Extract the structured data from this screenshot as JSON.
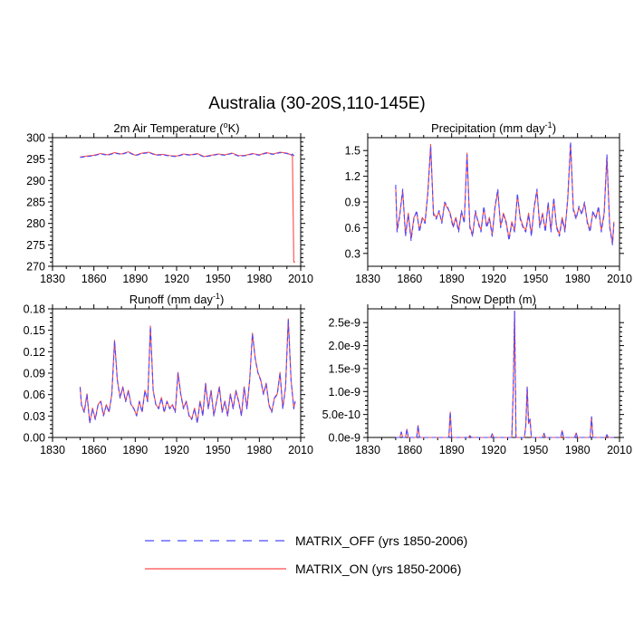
{
  "figure": {
    "title": "Australia (30-20S,110-145E)"
  },
  "legend": {
    "placement": "bottom-center",
    "entries": [
      {
        "label": "MATRIX_OFF (yrs 1850-2006)",
        "color": "#4a4aff",
        "style": "dashed"
      },
      {
        "label": "MATRIX_ON (yrs 1850-2006)",
        "color": "#ff4a4a",
        "style": "solid"
      }
    ]
  },
  "chart_data": [
    {
      "type": "line",
      "title_main": "2m Air Temperature (",
      "title_sup": "o",
      "title_end": "K)",
      "xlim": [
        1830,
        2010
      ],
      "xticks": [
        1830,
        1860,
        1890,
        1920,
        1950,
        1980,
        2010
      ],
      "ylim": [
        270,
        300
      ],
      "yticks": [
        270,
        275,
        280,
        285,
        290,
        295,
        300
      ],
      "ytick_labels": [
        "270",
        "275",
        "280",
        "285",
        "290",
        "295",
        "300"
      ],
      "x": [
        1850,
        1855,
        1860,
        1865,
        1870,
        1875,
        1880,
        1885,
        1890,
        1895,
        1900,
        1905,
        1910,
        1915,
        1920,
        1925,
        1930,
        1935,
        1940,
        1945,
        1950,
        1955,
        1960,
        1965,
        1970,
        1975,
        1980,
        1985,
        1990,
        1995,
        2000,
        2003,
        2004,
        2005,
        2006
      ],
      "series": [
        {
          "name": "MATRIX_OFF",
          "values": [
            295.4,
            295.6,
            295.8,
            296.2,
            295.9,
            296.4,
            296.1,
            296.6,
            295.8,
            296.3,
            296.5,
            295.9,
            296.0,
            295.7,
            295.6,
            296.1,
            295.9,
            296.2,
            295.5,
            295.8,
            296.1,
            295.9,
            296.3,
            295.7,
            295.8,
            296.2,
            295.9,
            296.4,
            296.1,
            296.5,
            296.3,
            295.9,
            296.2,
            295.8,
            296.5
          ]
        },
        {
          "name": "MATRIX_ON",
          "values": [
            295.5,
            295.7,
            295.9,
            296.3,
            296.0,
            296.5,
            296.2,
            296.7,
            295.9,
            296.4,
            296.6,
            296.0,
            296.1,
            295.8,
            295.7,
            296.2,
            296.0,
            296.3,
            295.6,
            295.9,
            296.2,
            296.0,
            296.4,
            295.8,
            295.9,
            296.3,
            296.0,
            296.5,
            296.2,
            296.6,
            296.4,
            296.0,
            295.8,
            271.0,
            271.0
          ]
        }
      ]
    },
    {
      "type": "line",
      "title_main": "Precipitation (mm day",
      "title_sup": "-1",
      "title_end": ")",
      "xlim": [
        1830,
        2010
      ],
      "xticks": [
        1830,
        1860,
        1890,
        1920,
        1950,
        1980,
        2010
      ],
      "ylim": [
        0.15,
        1.65
      ],
      "yticks": [
        0.3,
        0.6,
        0.9,
        1.2,
        1.5
      ],
      "ytick_labels": [
        "0.3",
        "0.6",
        "0.9",
        "1.2",
        "1.5"
      ],
      "x": [
        1850,
        1851,
        1853,
        1855,
        1857,
        1859,
        1861,
        1863,
        1865,
        1867,
        1869,
        1871,
        1873,
        1875,
        1877,
        1879,
        1881,
        1883,
        1885,
        1887,
        1889,
        1891,
        1893,
        1895,
        1897,
        1899,
        1901,
        1903,
        1905,
        1907,
        1909,
        1911,
        1913,
        1915,
        1917,
        1919,
        1921,
        1923,
        1925,
        1927,
        1929,
        1931,
        1933,
        1935,
        1937,
        1939,
        1941,
        1943,
        1945,
        1947,
        1949,
        1951,
        1953,
        1955,
        1957,
        1959,
        1961,
        1963,
        1965,
        1967,
        1969,
        1971,
        1973,
        1975,
        1977,
        1979,
        1981,
        1983,
        1985,
        1987,
        1989,
        1991,
        1993,
        1995,
        1997,
        1999,
        2001,
        2003,
        2005,
        2006
      ],
      "series": [
        {
          "name": "MATRIX_OFF",
          "values": [
            1.1,
            0.55,
            0.75,
            1.05,
            0.5,
            0.75,
            0.45,
            0.7,
            0.8,
            0.55,
            0.7,
            0.65,
            1.0,
            1.55,
            0.75,
            0.7,
            0.8,
            0.65,
            0.9,
            0.85,
            0.75,
            0.6,
            0.7,
            0.55,
            0.8,
            0.65,
            1.45,
            0.6,
            0.5,
            0.8,
            0.65,
            0.55,
            0.85,
            0.6,
            0.7,
            0.5,
            0.85,
            1.05,
            0.6,
            0.75,
            0.65,
            0.45,
            0.65,
            0.55,
            1.0,
            0.7,
            0.6,
            0.55,
            0.75,
            0.5,
            0.85,
            1.05,
            0.6,
            0.75,
            0.55,
            0.9,
            0.55,
            0.95,
            0.6,
            0.5,
            0.7,
            0.55,
            0.95,
            1.6,
            0.8,
            0.7,
            0.85,
            0.75,
            0.9,
            0.65,
            0.55,
            0.8,
            0.7,
            0.85,
            0.55,
            0.75,
            1.45,
            0.6,
            0.4,
            0.65
          ]
        },
        {
          "name": "MATRIX_ON",
          "values": [
            1.08,
            0.57,
            0.77,
            1.03,
            0.52,
            0.77,
            0.47,
            0.72,
            0.78,
            0.57,
            0.72,
            0.67,
            1.02,
            1.57,
            0.77,
            0.72,
            0.78,
            0.67,
            0.88,
            0.83,
            0.77,
            0.62,
            0.72,
            0.57,
            0.78,
            0.67,
            1.47,
            0.62,
            0.52,
            0.78,
            0.67,
            0.57,
            0.83,
            0.62,
            0.72,
            0.52,
            0.83,
            1.03,
            0.62,
            0.77,
            0.67,
            0.47,
            0.67,
            0.57,
            0.98,
            0.72,
            0.62,
            0.57,
            0.77,
            0.52,
            0.83,
            1.03,
            0.62,
            0.77,
            0.57,
            0.88,
            0.57,
            0.93,
            0.62,
            0.52,
            0.72,
            0.57,
            0.93,
            1.58,
            0.82,
            0.72,
            0.83,
            0.77,
            0.88,
            0.67,
            0.57,
            0.78,
            0.72,
            0.83,
            0.57,
            0.77,
            1.43,
            0.62,
            0.42,
            0.67
          ]
        }
      ]
    },
    {
      "type": "line",
      "title_main": "Runoff (mm day",
      "title_sup": "-1",
      "title_end": ")",
      "xlim": [
        1830,
        2010
      ],
      "xticks": [
        1830,
        1860,
        1890,
        1920,
        1950,
        1980,
        2010
      ],
      "ylim": [
        0,
        0.18
      ],
      "yticks": [
        0,
        0.03,
        0.06,
        0.09,
        0.12,
        0.15,
        0.18
      ],
      "ytick_labels": [
        "0.00",
        "0.03",
        "0.06",
        "0.09",
        "0.12",
        "0.15",
        "0.18"
      ],
      "x": [
        1850,
        1851,
        1853,
        1855,
        1857,
        1859,
        1861,
        1863,
        1865,
        1867,
        1869,
        1871,
        1873,
        1875,
        1877,
        1879,
        1881,
        1883,
        1885,
        1887,
        1889,
        1891,
        1893,
        1895,
        1897,
        1899,
        1901,
        1903,
        1905,
        1907,
        1909,
        1911,
        1913,
        1915,
        1917,
        1919,
        1921,
        1923,
        1925,
        1927,
        1929,
        1931,
        1933,
        1935,
        1937,
        1939,
        1941,
        1943,
        1945,
        1947,
        1949,
        1951,
        1953,
        1955,
        1957,
        1959,
        1961,
        1963,
        1965,
        1967,
        1969,
        1971,
        1973,
        1975,
        1977,
        1979,
        1981,
        1983,
        1985,
        1987,
        1989,
        1991,
        1993,
        1995,
        1997,
        1999,
        2001,
        2003,
        2005,
        2006
      ],
      "series": [
        {
          "name": "MATRIX_OFF",
          "values": [
            0.07,
            0.045,
            0.035,
            0.06,
            0.02,
            0.04,
            0.025,
            0.045,
            0.05,
            0.03,
            0.045,
            0.035,
            0.06,
            0.135,
            0.08,
            0.055,
            0.07,
            0.05,
            0.065,
            0.045,
            0.04,
            0.03,
            0.05,
            0.035,
            0.065,
            0.05,
            0.155,
            0.065,
            0.045,
            0.04,
            0.055,
            0.035,
            0.05,
            0.04,
            0.045,
            0.035,
            0.09,
            0.06,
            0.04,
            0.05,
            0.03,
            0.025,
            0.04,
            0.02,
            0.05,
            0.03,
            0.075,
            0.04,
            0.065,
            0.03,
            0.05,
            0.07,
            0.035,
            0.05,
            0.03,
            0.06,
            0.04,
            0.065,
            0.05,
            0.03,
            0.07,
            0.04,
            0.08,
            0.145,
            0.11,
            0.09,
            0.08,
            0.06,
            0.075,
            0.045,
            0.035,
            0.055,
            0.06,
            0.09,
            0.04,
            0.07,
            0.165,
            0.08,
            0.04,
            0.05
          ]
        },
        {
          "name": "MATRIX_ON",
          "values": [
            0.071,
            0.046,
            0.036,
            0.061,
            0.021,
            0.041,
            0.026,
            0.046,
            0.051,
            0.031,
            0.046,
            0.036,
            0.061,
            0.136,
            0.081,
            0.056,
            0.071,
            0.051,
            0.066,
            0.046,
            0.041,
            0.031,
            0.051,
            0.036,
            0.066,
            0.051,
            0.156,
            0.066,
            0.046,
            0.041,
            0.056,
            0.036,
            0.051,
            0.041,
            0.046,
            0.036,
            0.091,
            0.061,
            0.041,
            0.051,
            0.031,
            0.026,
            0.041,
            0.021,
            0.051,
            0.031,
            0.076,
            0.041,
            0.066,
            0.031,
            0.051,
            0.071,
            0.036,
            0.051,
            0.031,
            0.061,
            0.041,
            0.066,
            0.051,
            0.031,
            0.071,
            0.041,
            0.081,
            0.146,
            0.111,
            0.091,
            0.081,
            0.061,
            0.076,
            0.046,
            0.036,
            0.056,
            0.061,
            0.091,
            0.041,
            0.071,
            0.166,
            0.081,
            0.041,
            0.051
          ]
        }
      ]
    },
    {
      "type": "line",
      "title_main": "Snow Depth (m)",
      "title_sup": "",
      "title_end": "",
      "xlim": [
        1830,
        2010
      ],
      "xticks": [
        1830,
        1860,
        1890,
        1920,
        1950,
        1980,
        2010
      ],
      "ylim": [
        0,
        2.8e-09
      ],
      "yticks": [
        0,
        5e-10,
        1e-09,
        1.5e-09,
        2e-09,
        2.5e-09
      ],
      "ytick_labels": [
        "0.0e-9",
        "5.0e-10",
        "1.0e-9",
        "1.5e-9",
        "2.0e-9",
        "2.5e-9"
      ],
      "x": [
        1850,
        1853,
        1854,
        1855,
        1857,
        1858,
        1859,
        1862,
        1865,
        1866,
        1867,
        1870,
        1878,
        1882,
        1888,
        1889,
        1890,
        1895,
        1902,
        1903,
        1904,
        1910,
        1918,
        1919,
        1920,
        1928,
        1932,
        1933,
        1934,
        1935,
        1936,
        1937,
        1940,
        1942,
        1943,
        1944,
        1945,
        1946,
        1947,
        1950,
        1955,
        1956,
        1957,
        1962,
        1968,
        1969,
        1970,
        1978,
        1979,
        1980,
        1985,
        1989,
        1990,
        1991,
        1996,
        2000,
        2001,
        2002,
        2006
      ],
      "series": [
        {
          "name": "MATRIX_OFF",
          "values": [
            0,
            0,
            1.2e-10,
            0,
            0,
            1.8e-10,
            0,
            0,
            0,
            2.6e-10,
            0,
            0,
            0,
            0,
            0,
            5.5e-10,
            0,
            0,
            0,
            4e-11,
            0,
            0,
            0,
            8e-11,
            0,
            0,
            0,
            0,
            1e-09,
            2.75e-09,
            0,
            0,
            0,
            0,
            2.5e-10,
            1.1e-09,
            3e-10,
            4e-10,
            0,
            0,
            0,
            9e-11,
            0,
            0,
            0,
            1.5e-10,
            0,
            0,
            1e-10,
            0,
            0,
            0,
            4.5e-10,
            0,
            0,
            0,
            6e-11,
            0,
            0
          ]
        },
        {
          "name": "MATRIX_ON",
          "values": [
            0,
            0,
            1.2e-10,
            0,
            0,
            1.8e-10,
            0,
            0,
            0,
            2.6e-10,
            0,
            0,
            0,
            0,
            0,
            5.5e-10,
            0,
            0,
            0,
            4e-11,
            0,
            0,
            0,
            8e-11,
            0,
            0,
            0,
            0,
            1e-09,
            2.75e-09,
            0,
            0,
            0,
            0,
            2.5e-10,
            1.1e-09,
            3e-10,
            4e-10,
            0,
            0,
            0,
            9e-11,
            0,
            0,
            0,
            1.5e-10,
            0,
            0,
            1e-10,
            0,
            0,
            0,
            4.5e-10,
            0,
            0,
            0,
            6e-11,
            0,
            0
          ]
        }
      ]
    }
  ]
}
